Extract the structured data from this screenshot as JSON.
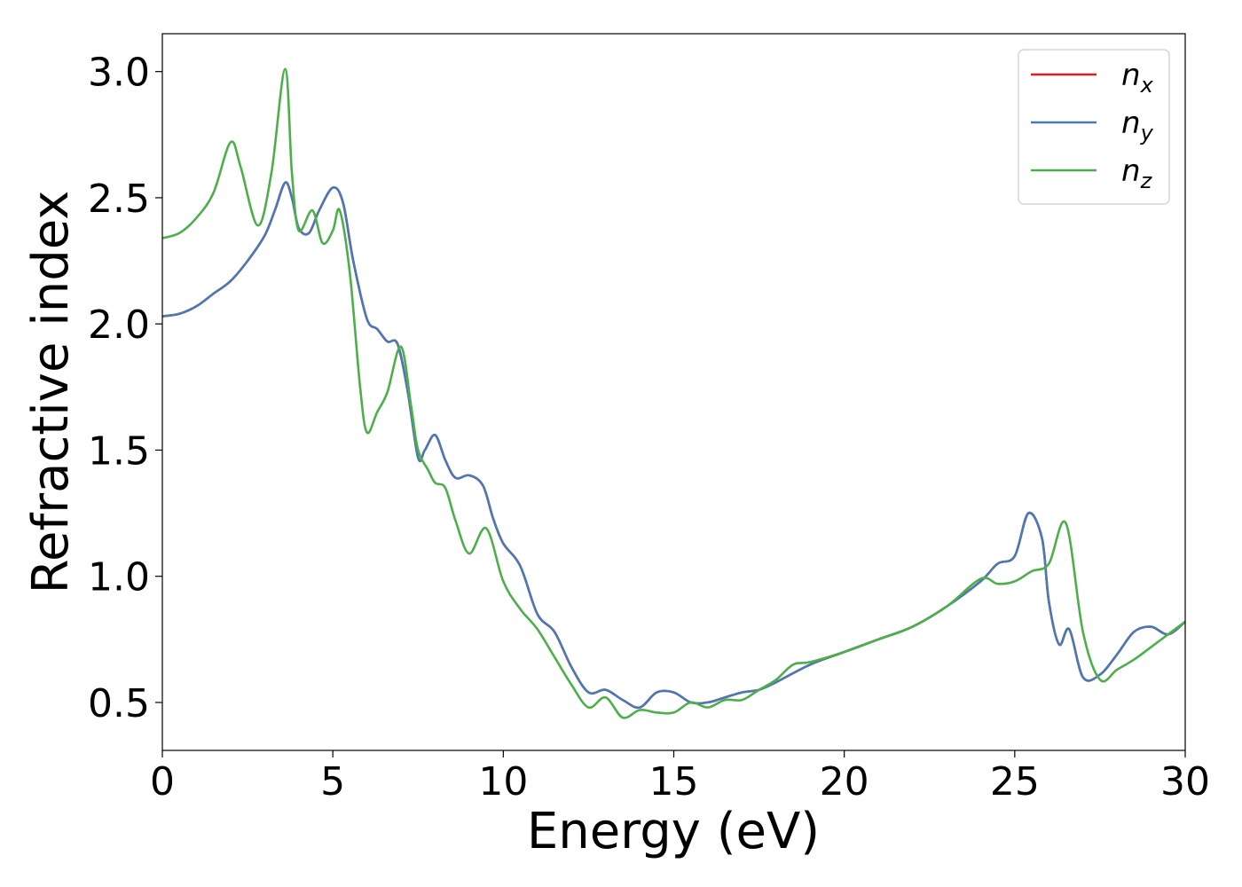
{
  "chart_data": {
    "type": "line",
    "xlabel": "Energy (eV)",
    "ylabel": "Refractive index",
    "xlim": [
      0,
      30
    ],
    "ylim": [
      0.31,
      3.15
    ],
    "xticks": [
      "0",
      "5",
      "10",
      "15",
      "20",
      "25",
      "30"
    ],
    "yticks": [
      "0.5",
      "1.0",
      "1.5",
      "2.0",
      "2.5",
      "3.0"
    ],
    "grid": false,
    "legend_position": "top-right",
    "series": [
      {
        "name": "n",
        "subscript": "x",
        "color": "#e41a1c",
        "x": [
          0,
          0.5,
          1,
          1.5,
          2,
          2.5,
          3,
          3.3,
          3.6,
          3.8,
          4,
          4.3,
          4.6,
          5,
          5.3,
          5.6,
          6,
          6.3,
          6.6,
          6.9,
          7.2,
          7.5,
          7.7,
          8,
          8.3,
          8.6,
          9,
          9.4,
          9.7,
          10,
          10.5,
          11,
          11.5,
          12,
          12.5,
          13,
          13.5,
          14,
          14.5,
          15,
          15.5,
          16,
          16.5,
          17,
          17.5,
          18,
          19,
          20,
          21,
          22,
          23,
          24,
          24.5,
          25,
          25.4,
          25.8,
          26,
          26.3,
          26.6,
          27,
          27.5,
          28,
          28.5,
          29,
          29.5,
          30
        ],
        "values": [
          2.03,
          2.04,
          2.07,
          2.12,
          2.17,
          2.25,
          2.35,
          2.45,
          2.56,
          2.5,
          2.38,
          2.36,
          2.45,
          2.54,
          2.48,
          2.25,
          2.02,
          1.98,
          1.93,
          1.92,
          1.73,
          1.47,
          1.5,
          1.56,
          1.46,
          1.39,
          1.4,
          1.36,
          1.23,
          1.13,
          1.04,
          0.85,
          0.78,
          0.64,
          0.54,
          0.55,
          0.51,
          0.48,
          0.54,
          0.54,
          0.5,
          0.5,
          0.52,
          0.54,
          0.55,
          0.58,
          0.65,
          0.7,
          0.75,
          0.8,
          0.88,
          0.98,
          1.05,
          1.08,
          1.25,
          1.15,
          0.9,
          0.73,
          0.79,
          0.6,
          0.61,
          0.69,
          0.78,
          0.8,
          0.77,
          0.82
        ]
      },
      {
        "name": "n",
        "subscript": "y",
        "color": "#4a7ab5",
        "x": [
          0,
          0.5,
          1,
          1.5,
          2,
          2.5,
          3,
          3.3,
          3.6,
          3.8,
          4,
          4.3,
          4.6,
          5,
          5.3,
          5.6,
          6,
          6.3,
          6.6,
          6.9,
          7.2,
          7.5,
          7.7,
          8,
          8.3,
          8.6,
          9,
          9.4,
          9.7,
          10,
          10.5,
          11,
          11.5,
          12,
          12.5,
          13,
          13.5,
          14,
          14.5,
          15,
          15.5,
          16,
          16.5,
          17,
          17.5,
          18,
          19,
          20,
          21,
          22,
          23,
          24,
          24.5,
          25,
          25.4,
          25.8,
          26,
          26.3,
          26.6,
          27,
          27.5,
          28,
          28.5,
          29,
          29.5,
          30
        ],
        "values": [
          2.03,
          2.04,
          2.07,
          2.12,
          2.17,
          2.25,
          2.35,
          2.45,
          2.56,
          2.5,
          2.38,
          2.36,
          2.45,
          2.54,
          2.48,
          2.25,
          2.02,
          1.98,
          1.93,
          1.92,
          1.73,
          1.47,
          1.5,
          1.56,
          1.46,
          1.39,
          1.4,
          1.36,
          1.23,
          1.13,
          1.04,
          0.85,
          0.78,
          0.64,
          0.54,
          0.55,
          0.51,
          0.48,
          0.54,
          0.54,
          0.5,
          0.5,
          0.52,
          0.54,
          0.55,
          0.58,
          0.65,
          0.7,
          0.75,
          0.8,
          0.88,
          0.98,
          1.05,
          1.08,
          1.25,
          1.15,
          0.9,
          0.73,
          0.79,
          0.6,
          0.61,
          0.69,
          0.78,
          0.8,
          0.77,
          0.82
        ]
      },
      {
        "name": "n",
        "subscript": "z",
        "color": "#4daf4a",
        "x": [
          0,
          0.5,
          1,
          1.5,
          2,
          2.3,
          2.8,
          3.2,
          3.6,
          3.8,
          4,
          4.4,
          4.7,
          5,
          5.2,
          5.5,
          5.8,
          6,
          6.3,
          6.6,
          7,
          7.3,
          7.5,
          7.8,
          8,
          8.3,
          8.6,
          9,
          9.5,
          10,
          10.5,
          11,
          11.5,
          12,
          12.5,
          13,
          13.5,
          14,
          14.5,
          15,
          15.5,
          16,
          16.5,
          17,
          17.5,
          18,
          18.5,
          19,
          20,
          21,
          22,
          23,
          24,
          24.5,
          25,
          25.5,
          26,
          26.5,
          27,
          27.5,
          28,
          28.5,
          29,
          29.5,
          30
        ],
        "values": [
          2.34,
          2.36,
          2.42,
          2.52,
          2.72,
          2.62,
          2.39,
          2.6,
          3.01,
          2.6,
          2.37,
          2.45,
          2.32,
          2.37,
          2.45,
          2.2,
          1.75,
          1.57,
          1.65,
          1.73,
          1.91,
          1.67,
          1.5,
          1.42,
          1.37,
          1.35,
          1.22,
          1.09,
          1.19,
          0.98,
          0.87,
          0.79,
          0.68,
          0.57,
          0.48,
          0.52,
          0.44,
          0.47,
          0.46,
          0.46,
          0.5,
          0.48,
          0.51,
          0.51,
          0.55,
          0.59,
          0.65,
          0.66,
          0.7,
          0.75,
          0.8,
          0.88,
          0.99,
          0.97,
          0.98,
          1.02,
          1.05,
          1.21,
          0.78,
          0.59,
          0.63,
          0.67,
          0.72,
          0.77,
          0.82
        ]
      }
    ]
  }
}
